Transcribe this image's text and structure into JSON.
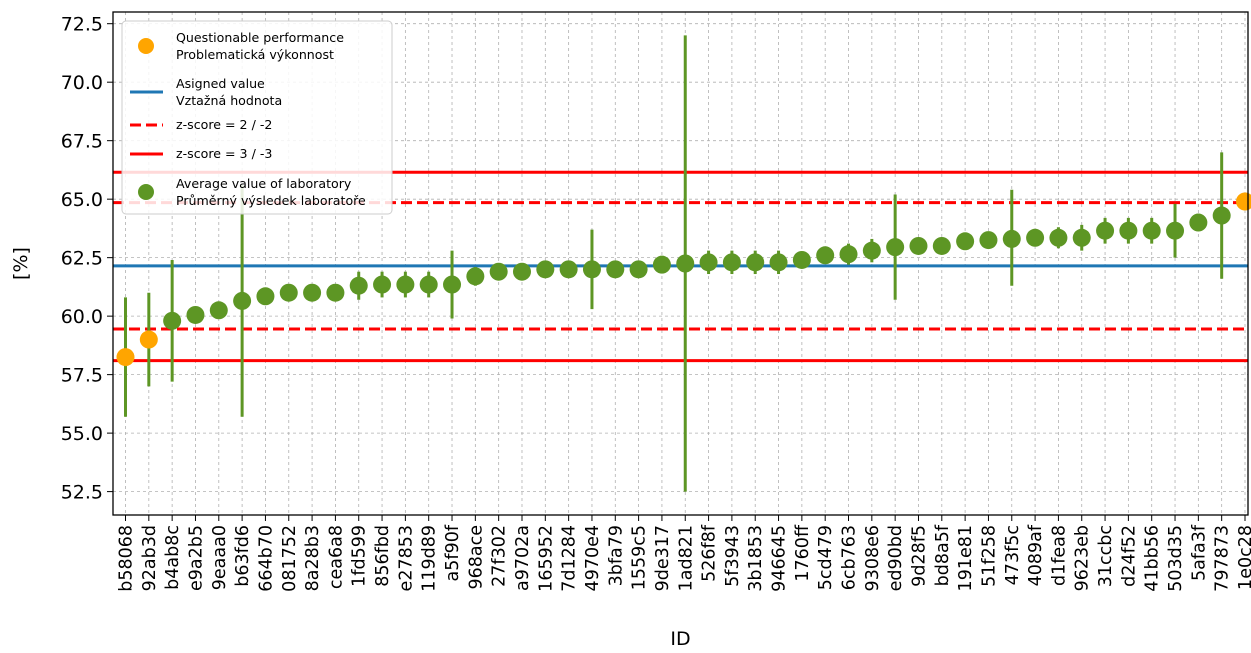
{
  "chart_data": {
    "type": "scatter",
    "xlabel": "ID",
    "ylabel": "[%]",
    "ylim": [
      51.5,
      73.0
    ],
    "yticks": [
      "52.5",
      "55.0",
      "57.5",
      "60.0",
      "62.5",
      "65.0",
      "67.5",
      "70.0",
      "72.5"
    ],
    "grid": true,
    "legend_position": "top-left",
    "reference_lines": {
      "assigned_value": 62.15,
      "z2_lower": 59.45,
      "z2_upper": 64.85,
      "z3_lower": 58.1,
      "z3_upper": 66.15
    },
    "colors": {
      "questionable": "#ffa500",
      "assigned": "#1f77b4",
      "zscore": "#ff0000",
      "lab": "#5d9624"
    },
    "legend": [
      {
        "key": "questionable",
        "lines": [
          "Questionable performance",
          "Problematická výkonnost"
        ]
      },
      {
        "key": "assigned",
        "lines": [
          "Asigned value",
          "Vztažná hodnota"
        ]
      },
      {
        "key": "z2",
        "lines": [
          "z-score = 2 / -2"
        ]
      },
      {
        "key": "z3",
        "lines": [
          "z-score = 3 / -3"
        ]
      },
      {
        "key": "lab",
        "lines": [
          "Average value of laboratory",
          "Průměrný výsledek laboratoře"
        ]
      }
    ],
    "points": [
      {
        "id": "b58068",
        "y": 58.25,
        "lo": 55.7,
        "hi": 60.8,
        "q": true
      },
      {
        "id": "92ab3d",
        "y": 59.0,
        "lo": 57.0,
        "hi": 61.0,
        "q": true
      },
      {
        "id": "b4ab8c",
        "y": 59.8,
        "lo": 57.2,
        "hi": 62.4,
        "q": false
      },
      {
        "id": "e9a2b5",
        "y": 60.05,
        "lo": null,
        "hi": null,
        "q": false
      },
      {
        "id": "9eaaa0",
        "y": 60.25,
        "lo": null,
        "hi": null,
        "q": false
      },
      {
        "id": "b63fd6",
        "y": 60.65,
        "lo": 55.7,
        "hi": 65.6,
        "q": false
      },
      {
        "id": "664b70",
        "y": 60.85,
        "lo": null,
        "hi": null,
        "q": false
      },
      {
        "id": "081752",
        "y": 61.0,
        "lo": null,
        "hi": null,
        "q": false
      },
      {
        "id": "8a28b3",
        "y": 61.0,
        "lo": null,
        "hi": null,
        "q": false
      },
      {
        "id": "cea6a8",
        "y": 61.0,
        "lo": null,
        "hi": null,
        "q": false
      },
      {
        "id": "1fd599",
        "y": 61.3,
        "lo": 60.7,
        "hi": 61.9,
        "q": false
      },
      {
        "id": "856fbd",
        "y": 61.35,
        "lo": 60.8,
        "hi": 61.9,
        "q": false
      },
      {
        "id": "e27853",
        "y": 61.35,
        "lo": 60.8,
        "hi": 61.9,
        "q": false
      },
      {
        "id": "119d89",
        "y": 61.35,
        "lo": 60.8,
        "hi": 61.9,
        "q": false
      },
      {
        "id": "a5f90f",
        "y": 61.35,
        "lo": 59.9,
        "hi": 62.8,
        "q": false
      },
      {
        "id": "968ace",
        "y": 61.7,
        "lo": 61.3,
        "hi": 62.1,
        "q": false
      },
      {
        "id": "27f302",
        "y": 61.9,
        "lo": null,
        "hi": null,
        "q": false
      },
      {
        "id": "a9702a",
        "y": 61.9,
        "lo": null,
        "hi": null,
        "q": false
      },
      {
        "id": "165952",
        "y": 62.0,
        "lo": null,
        "hi": null,
        "q": false
      },
      {
        "id": "7d1284",
        "y": 62.0,
        "lo": null,
        "hi": null,
        "q": false
      },
      {
        "id": "4970e4",
        "y": 62.0,
        "lo": 60.3,
        "hi": 63.7,
        "q": false
      },
      {
        "id": "3bfa79",
        "y": 62.0,
        "lo": null,
        "hi": null,
        "q": false
      },
      {
        "id": "1559c5",
        "y": 62.0,
        "lo": null,
        "hi": null,
        "q": false
      },
      {
        "id": "9de317",
        "y": 62.2,
        "lo": null,
        "hi": null,
        "q": false
      },
      {
        "id": "1ad821",
        "y": 62.25,
        "lo": 52.5,
        "hi": 72.0,
        "q": false
      },
      {
        "id": "526f8f",
        "y": 62.3,
        "lo": 61.8,
        "hi": 62.8,
        "q": false
      },
      {
        "id": "5f3943",
        "y": 62.3,
        "lo": 61.8,
        "hi": 62.8,
        "q": false
      },
      {
        "id": "3b1853",
        "y": 62.3,
        "lo": 61.8,
        "hi": 62.8,
        "q": false
      },
      {
        "id": "946645",
        "y": 62.3,
        "lo": 61.8,
        "hi": 62.8,
        "q": false
      },
      {
        "id": "1760ff",
        "y": 62.4,
        "lo": null,
        "hi": null,
        "q": false
      },
      {
        "id": "5cd479",
        "y": 62.6,
        "lo": null,
        "hi": null,
        "q": false
      },
      {
        "id": "6cb763",
        "y": 62.65,
        "lo": 62.2,
        "hi": 63.1,
        "q": false
      },
      {
        "id": "9308e6",
        "y": 62.8,
        "lo": 62.3,
        "hi": 63.3,
        "q": false
      },
      {
        "id": "ed90bd",
        "y": 62.95,
        "lo": 60.7,
        "hi": 65.2,
        "q": false
      },
      {
        "id": "9d28f5",
        "y": 63.0,
        "lo": null,
        "hi": null,
        "q": false
      },
      {
        "id": "bd8a5f",
        "y": 63.0,
        "lo": null,
        "hi": null,
        "q": false
      },
      {
        "id": "191e81",
        "y": 63.2,
        "lo": null,
        "hi": null,
        "q": false
      },
      {
        "id": "51f258",
        "y": 63.25,
        "lo": null,
        "hi": null,
        "q": false
      },
      {
        "id": "473f5c",
        "y": 63.3,
        "lo": 61.3,
        "hi": 65.4,
        "q": false
      },
      {
        "id": "4089af",
        "y": 63.35,
        "lo": null,
        "hi": null,
        "q": false
      },
      {
        "id": "d1fea8",
        "y": 63.35,
        "lo": 62.9,
        "hi": 63.8,
        "q": false
      },
      {
        "id": "9623eb",
        "y": 63.35,
        "lo": 62.8,
        "hi": 63.9,
        "q": false
      },
      {
        "id": "31ccbc",
        "y": 63.65,
        "lo": 63.1,
        "hi": 64.2,
        "q": false
      },
      {
        "id": "d24f52",
        "y": 63.65,
        "lo": 63.1,
        "hi": 64.2,
        "q": false
      },
      {
        "id": "41bb56",
        "y": 63.65,
        "lo": 63.1,
        "hi": 64.2,
        "q": false
      },
      {
        "id": "503d35",
        "y": 63.65,
        "lo": 62.5,
        "hi": 64.8,
        "q": false
      },
      {
        "id": "5afa3f",
        "y": 64.0,
        "lo": null,
        "hi": null,
        "q": false
      },
      {
        "id": "797873",
        "y": 64.3,
        "lo": 61.6,
        "hi": 67.0,
        "q": false
      },
      {
        "id": "1e0c28",
        "y": 64.9,
        "lo": null,
        "hi": null,
        "q": true
      }
    ]
  }
}
